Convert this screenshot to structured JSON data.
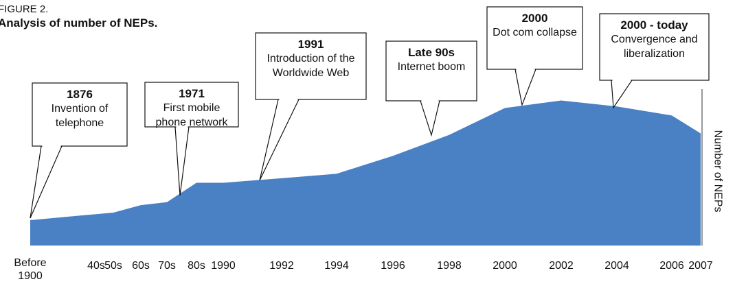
{
  "chart_data": {
    "type": "area",
    "figure_label": "FIGURE 2.",
    "title": "Analysis of number of NEPs.",
    "y_axis_label": "Number of NEPs",
    "color": "#4a80c4",
    "categories": [
      "Before 1900",
      "40s",
      "50s",
      "60s",
      "70s",
      "80s",
      "1990",
      "1992",
      "1994",
      "1996",
      "1998",
      "2000",
      "2002",
      "2004",
      "2006",
      "2007"
    ],
    "values": [
      17,
      21,
      22,
      27,
      29,
      42,
      42,
      45,
      48,
      60,
      74,
      92,
      97,
      93,
      87,
      75
    ],
    "ylim": [
      0,
      100
    ],
    "annotations": [
      {
        "year": "1876",
        "text": "Invention of telephone"
      },
      {
        "year": "1971",
        "text": "First mobile phone network"
      },
      {
        "year": "1991",
        "text": "Introduction of the Worldwide Web"
      },
      {
        "year": "Late 90s",
        "text": "Internet boom"
      },
      {
        "year": "2000",
        "text": "Dot com collapse"
      },
      {
        "year": "2000 - today",
        "text": "Convergence and liberalization"
      }
    ]
  }
}
